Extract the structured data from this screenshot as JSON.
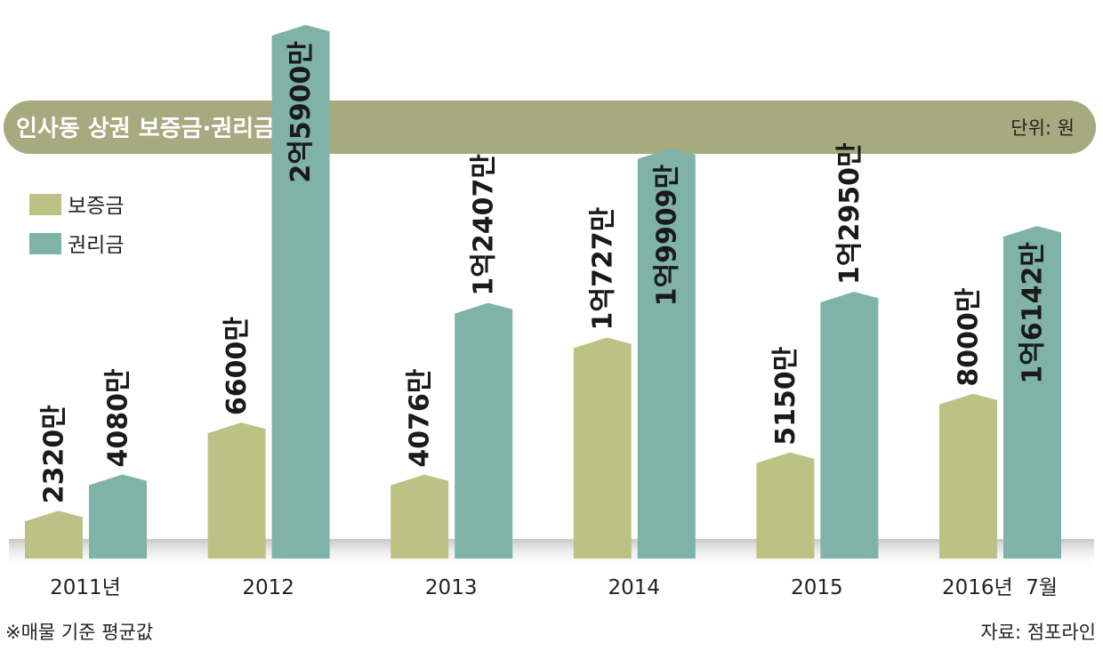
{
  "title": "인사동 상권 보증금·권리금",
  "unit": "단위: 원",
  "footnote": "※매물 기준 평균값",
  "source": "자료: 점포라인",
  "colors": {
    "deposit": "#bcc283",
    "premium": "#7fb3a7",
    "title_bar": "#a6aa7e"
  },
  "chart_data": {
    "type": "bar",
    "categories": [
      "2011년",
      "2012",
      "2013",
      "2014",
      "2015",
      "2016년  7월"
    ],
    "series": [
      {
        "name": "보증금",
        "values": [
          2320,
          6600,
          4076,
          10727,
          5150,
          8000
        ],
        "labels": [
          "2320만",
          "6600만",
          "4076만",
          "1억727만",
          "5150만",
          "8000만"
        ]
      },
      {
        "name": "권리금",
        "values": [
          4080,
          25900,
          12407,
          19909,
          12950,
          16142
        ],
        "labels": [
          "4080만",
          "2억5900만",
          "1억2407만",
          "1억9909만",
          "1억2950만",
          "1억6142만"
        ]
      }
    ],
    "value_unit": "만원"
  }
}
